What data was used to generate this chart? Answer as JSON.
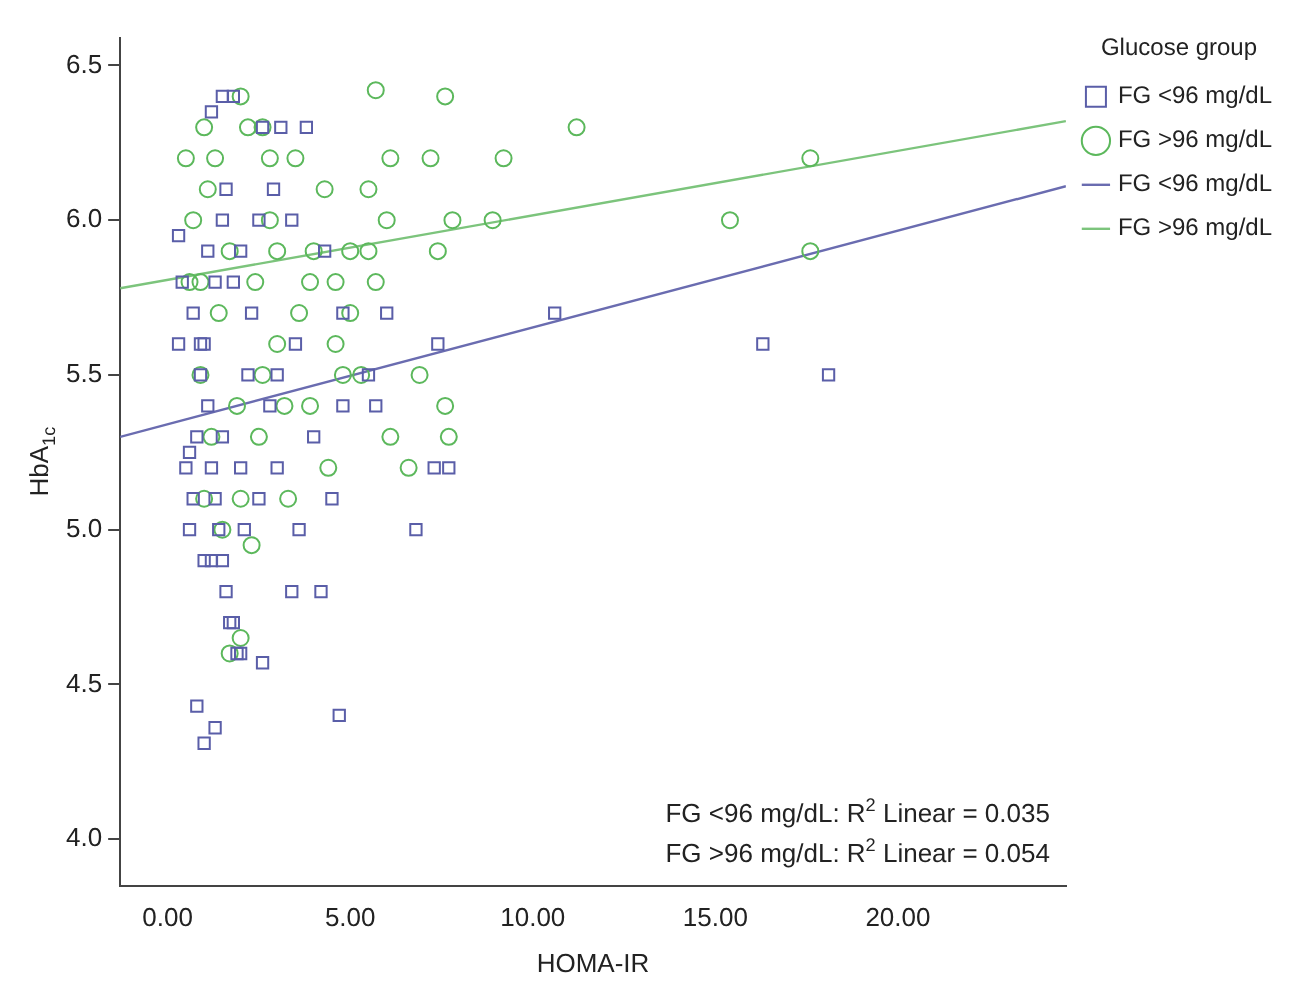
{
  "chart_data": {
    "type": "scatter",
    "xlabel": "HOMA-IR",
    "ylabel": "HbA$_{1c}$",
    "legend_title": "Glucose group",
    "legend": "top right",
    "grid": false,
    "xlim": [
      -1.3,
      24.6
    ],
    "xticks": [
      {
        "value": 0,
        "label": "0.00"
      },
      {
        "value": 5,
        "label": "5.00"
      },
      {
        "value": 10,
        "label": "10.00"
      },
      {
        "value": 15,
        "label": "15.00"
      },
      {
        "value": 20,
        "label": "20.00"
      }
    ],
    "ylim": [
      3.85,
      6.59
    ],
    "yticks": [
      {
        "value": 4,
        "label": "4.0"
      },
      4.5,
      {
        "value": 5,
        "label": "5.0"
      },
      5.5,
      {
        "value": 6,
        "label": "6.0"
      },
      6.5
    ],
    "annotations": [
      "FG <96 mg/dL: R$^{2}$ Linear = 0.035",
      "FG >96 mg/dL: R$^{2}$ Linear = 0.054"
    ],
    "series": [
      {
        "name": "FG <96 mg/dL",
        "type": "scatter",
        "marker": "square",
        "color": "#5a5ea8",
        "x": [
          0.5,
          0.6,
          0.7,
          0.8,
          0.9,
          1.0,
          1.1,
          1.2,
          1.3,
          1.4,
          1.5,
          1.6,
          1.7,
          1.9,
          2.6,
          0.8,
          1.0,
          1.3,
          4.7,
          4.2,
          3.4,
          2.0,
          1.8,
          0.3,
          0.4,
          0.3,
          1.5,
          1.8,
          1.2,
          2.6,
          3.1,
          3.8,
          1.5,
          2.5,
          3.4,
          2.0,
          4.3,
          7.4,
          16.3,
          18.1,
          10.6,
          7.7,
          7.3,
          6.8,
          5.5,
          4.8,
          4.0,
          3.0,
          2.3,
          1.8,
          2.2,
          2.8,
          3.5,
          0.7,
          1.1,
          1.5,
          2.0,
          2.5,
          3.0,
          3.6,
          0.9,
          1.3,
          4.5,
          1.6,
          2.9,
          4.8,
          5.7,
          6.0,
          2.1,
          1.0,
          1.2,
          0.6
        ],
        "values": [
          5.2,
          5.0,
          5.1,
          5.3,
          5.5,
          5.6,
          5.4,
          5.2,
          5.1,
          5.0,
          4.9,
          4.8,
          4.7,
          4.6,
          4.57,
          4.43,
          4.31,
          4.36,
          4.4,
          4.8,
          4.8,
          4.6,
          4.7,
          5.95,
          5.8,
          5.6,
          6.4,
          6.4,
          6.35,
          6.3,
          6.3,
          6.3,
          6.0,
          6.0,
          6.0,
          5.9,
          5.9,
          5.6,
          5.6,
          5.5,
          5.7,
          5.2,
          5.2,
          5.0,
          5.5,
          5.4,
          5.3,
          5.5,
          5.7,
          5.8,
          5.5,
          5.4,
          5.6,
          5.7,
          5.9,
          5.3,
          5.2,
          5.1,
          5.2,
          5.0,
          5.6,
          5.8,
          5.1,
          6.1,
          6.1,
          5.7,
          5.4,
          5.7,
          5.0,
          4.9,
          4.9,
          5.25
        ]
      },
      {
        "name": "FG >96 mg/dL",
        "type": "scatter",
        "marker": "circle",
        "color": "#5cb85c",
        "x": [
          1.0,
          1.3,
          2.0,
          2.2,
          2.8,
          3.5,
          5.5,
          4.3,
          5.7,
          7.6,
          11.2,
          6.1,
          7.2,
          8.9,
          6.0,
          7.8,
          9.2,
          17.6,
          15.4,
          17.6,
          7.4,
          5.7,
          5.0,
          6.9,
          7.6,
          7.7,
          6.1,
          6.6,
          5.0,
          4.6,
          5.3,
          4.8,
          0.5,
          0.7,
          0.6,
          0.9,
          1.4,
          1.7,
          2.4,
          3.0,
          3.6,
          4.0,
          2.6,
          3.2,
          1.9,
          1.2,
          2.0,
          2.5,
          3.9,
          4.4,
          2.3,
          1.7,
          2.0,
          1.0,
          1.5,
          3.3,
          2.8,
          3.9,
          4.6,
          1.1,
          2.6,
          3.0,
          0.9,
          5.5
        ],
        "values": [
          6.3,
          6.2,
          6.4,
          6.3,
          6.2,
          6.2,
          6.1,
          6.1,
          6.42,
          6.4,
          6.3,
          6.2,
          6.2,
          6.0,
          6.0,
          6.0,
          6.2,
          6.2,
          6.0,
          5.9,
          5.9,
          5.8,
          5.7,
          5.5,
          5.4,
          5.3,
          5.3,
          5.2,
          5.9,
          5.6,
          5.5,
          5.5,
          6.2,
          6.0,
          5.8,
          5.5,
          5.7,
          5.9,
          5.8,
          5.6,
          5.7,
          5.9,
          5.5,
          5.4,
          5.4,
          5.3,
          5.1,
          5.3,
          5.4,
          5.2,
          4.95,
          4.6,
          4.65,
          5.1,
          5.0,
          5.1,
          6.0,
          5.8,
          5.8,
          6.1,
          6.3,
          5.9,
          5.8,
          5.9
        ]
      },
      {
        "name": "FG <96 mg/dL",
        "type": "line",
        "line_style": "solid",
        "color": "#6a6cb0",
        "x": [
          -1.3,
          24.6
        ],
        "values": [
          5.3,
          6.11
        ]
      },
      {
        "name": "FG >96 mg/dL",
        "type": "line",
        "line_style": "solid",
        "color": "#7cc47c",
        "x": [
          -1.3,
          24.6
        ],
        "values": [
          5.78,
          6.32
        ]
      }
    ]
  }
}
